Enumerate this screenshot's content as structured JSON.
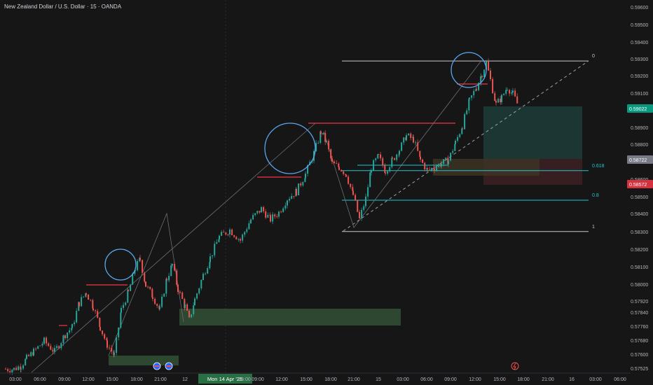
{
  "symbol_title": "New Zealand Dollar / U.S. Dollar · 15 · OANDA",
  "colors": {
    "background": "#161616",
    "up": "#26a69a",
    "down": "#ef5350",
    "axis_text": "#b2b5be",
    "fib_line": "#c8c8c8",
    "fib_aqua": "#1fc7d4",
    "circle": "#5aa7f0",
    "res_line": "#f23645",
    "zone_green": "#2e4a32"
  },
  "price_badges": {
    "current": "0.59022",
    "mid": "0.58722",
    "stop": "0.58572"
  },
  "fib_labels": {
    "l0": "0",
    "l618": "0.618",
    "l8": "0.8",
    "l1": "1"
  },
  "highlight_date": "Mon 14 Apr '25",
  "chart_data": {
    "type": "candlestick",
    "title": "New Zealand Dollar / U.S. Dollar · 15 · OANDA",
    "y_axis_ticks": [
      "0.59600",
      "0.59500",
      "0.59400",
      "0.59300",
      "0.59200",
      "0.59100",
      "0.59000",
      "0.58900",
      "0.58800",
      "0.58700",
      "0.58600",
      "0.58500",
      "0.58400",
      "0.58300",
      "0.58200",
      "0.58100",
      "0.58000",
      "0.57920",
      "0.57840",
      "0.57760",
      "0.57680",
      "0.57600",
      "0.57525"
    ],
    "x_axis_ticks": [
      "03:00",
      "06:00",
      "09:00",
      "12:00",
      "15:00",
      "18:00",
      "21:00",
      "12",
      "Mon 14 Apr '25",
      "05:00",
      "09:00",
      "12:00",
      "15:00",
      "18:00",
      "21:00",
      "15",
      "03:00",
      "06:00",
      "09:00",
      "12:00",
      "15:00",
      "18:00",
      "21:00",
      "16",
      "03:00",
      "06:00"
    ],
    "ylim": [
      0.57525,
      0.596
    ],
    "fibonacci": [
      {
        "label": "0",
        "price": 0.5929
      },
      {
        "label": "0.618",
        "price": 0.5866
      },
      {
        "label": "0.8",
        "price": 0.5849
      },
      {
        "label": "1",
        "price": 0.5831
      }
    ],
    "path": [
      [
        0,
        0.5752
      ],
      [
        12,
        0.5752
      ],
      [
        22,
        0.5754
      ],
      [
        30,
        0.5758
      ],
      [
        40,
        0.5762
      ],
      [
        55,
        0.5768
      ],
      [
        70,
        0.5762
      ],
      [
        85,
        0.5772
      ],
      [
        95,
        0.5776
      ],
      [
        105,
        0.579
      ],
      [
        115,
        0.5796
      ],
      [
        125,
        0.5788
      ],
      [
        135,
        0.5776
      ],
      [
        145,
        0.5766
      ],
      [
        155,
        0.576
      ],
      [
        165,
        0.5786
      ],
      [
        175,
        0.5796
      ],
      [
        185,
        0.581
      ],
      [
        192,
        0.5815
      ],
      [
        200,
        0.58
      ],
      [
        210,
        0.5794
      ],
      [
        220,
        0.5786
      ],
      [
        230,
        0.5804
      ],
      [
        238,
        0.5812
      ],
      [
        246,
        0.5798
      ],
      [
        256,
        0.5788
      ],
      [
        262,
        0.578
      ],
      [
        270,
        0.5792
      ],
      [
        282,
        0.5806
      ],
      [
        292,
        0.5816
      ],
      [
        305,
        0.5828
      ],
      [
        320,
        0.5832
      ],
      [
        335,
        0.5826
      ],
      [
        350,
        0.5838
      ],
      [
        365,
        0.5844
      ],
      [
        378,
        0.5838
      ],
      [
        390,
        0.5842
      ],
      [
        402,
        0.585
      ],
      [
        415,
        0.5854
      ],
      [
        428,
        0.5864
      ],
      [
        440,
        0.5876
      ],
      [
        450,
        0.5888
      ],
      [
        458,
        0.5882
      ],
      [
        466,
        0.587
      ],
      [
        476,
        0.5868
      ],
      [
        486,
        0.5864
      ],
      [
        496,
        0.5852
      ],
      [
        505,
        0.5838
      ],
      [
        514,
        0.585
      ],
      [
        522,
        0.5868
      ],
      [
        532,
        0.5874
      ],
      [
        542,
        0.5866
      ],
      [
        552,
        0.5872
      ],
      [
        562,
        0.5878
      ],
      [
        572,
        0.5886
      ],
      [
        582,
        0.5884
      ],
      [
        592,
        0.5872
      ],
      [
        602,
        0.5866
      ],
      [
        612,
        0.5868
      ],
      [
        622,
        0.587
      ],
      [
        632,
        0.5872
      ],
      [
        642,
        0.5882
      ],
      [
        652,
        0.5892
      ],
      [
        662,
        0.5906
      ],
      [
        672,
        0.5914
      ],
      [
        680,
        0.5922
      ],
      [
        686,
        0.5928
      ],
      [
        692,
        0.5918
      ],
      [
        700,
        0.5904
      ],
      [
        708,
        0.5908
      ],
      [
        716,
        0.5914
      ],
      [
        724,
        0.591
      ],
      [
        732,
        0.5903
      ]
    ]
  }
}
